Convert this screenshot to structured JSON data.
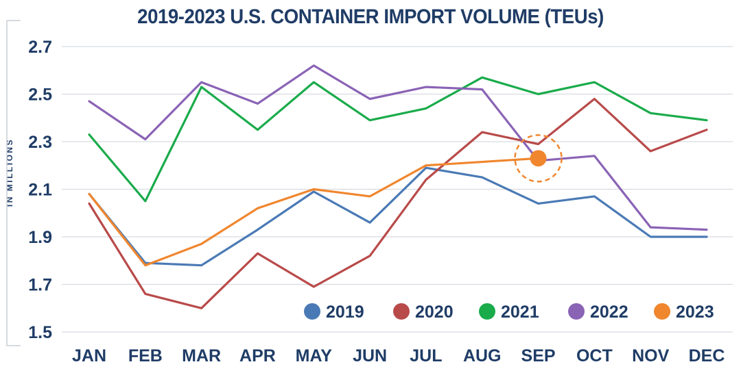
{
  "chart_data": {
    "type": "line",
    "title": "2019-2023 U.S. CONTAINER IMPORT VOLUME (TEUs)",
    "ylabel": "IN MILLIONS",
    "xlabel": "",
    "categories": [
      "JAN",
      "FEB",
      "MAR",
      "APR",
      "MAY",
      "JUN",
      "JUL",
      "AUG",
      "SEP",
      "OCT",
      "NOV",
      "DEC"
    ],
    "ylim": [
      1.5,
      2.7
    ],
    "yticks": [
      "2.7",
      "2.5",
      "2.3",
      "2.1",
      "1.9",
      "1.7",
      "1.5"
    ],
    "ytick_values": [
      2.7,
      2.5,
      2.3,
      2.1,
      1.9,
      1.7,
      1.5
    ],
    "grid": true,
    "legend_position": "bottom-right",
    "series": [
      {
        "name": "2019",
        "color": "#4a7ab5",
        "values": [
          2.08,
          1.79,
          1.78,
          1.93,
          2.09,
          1.96,
          2.19,
          2.15,
          2.04,
          2.07,
          1.9,
          1.9
        ]
      },
      {
        "name": "2020",
        "color": "#b94a4a",
        "values": [
          2.04,
          1.66,
          1.6,
          1.83,
          1.69,
          1.82,
          2.14,
          2.34,
          2.29,
          2.48,
          2.26,
          2.35
        ]
      },
      {
        "name": "2021",
        "color": "#1aab4b",
        "values": [
          2.33,
          2.05,
          2.53,
          2.35,
          2.55,
          2.39,
          2.44,
          2.57,
          2.5,
          2.55,
          2.42,
          2.39
        ]
      },
      {
        "name": "2022",
        "color": "#8a63b5",
        "values": [
          2.47,
          2.31,
          2.55,
          2.46,
          2.62,
          2.48,
          2.53,
          2.52,
          2.22,
          2.24,
          1.94,
          1.93
        ]
      },
      {
        "name": "2023",
        "color": "#f0862e",
        "values": [
          2.08,
          1.78,
          1.87,
          2.02,
          2.1,
          2.07,
          2.2,
          null,
          2.23,
          null,
          null,
          null
        ]
      }
    ],
    "annotation": {
      "series": "2023",
      "category": "SEP",
      "value": 2.23,
      "style": "dashed-circle-highlight"
    }
  }
}
